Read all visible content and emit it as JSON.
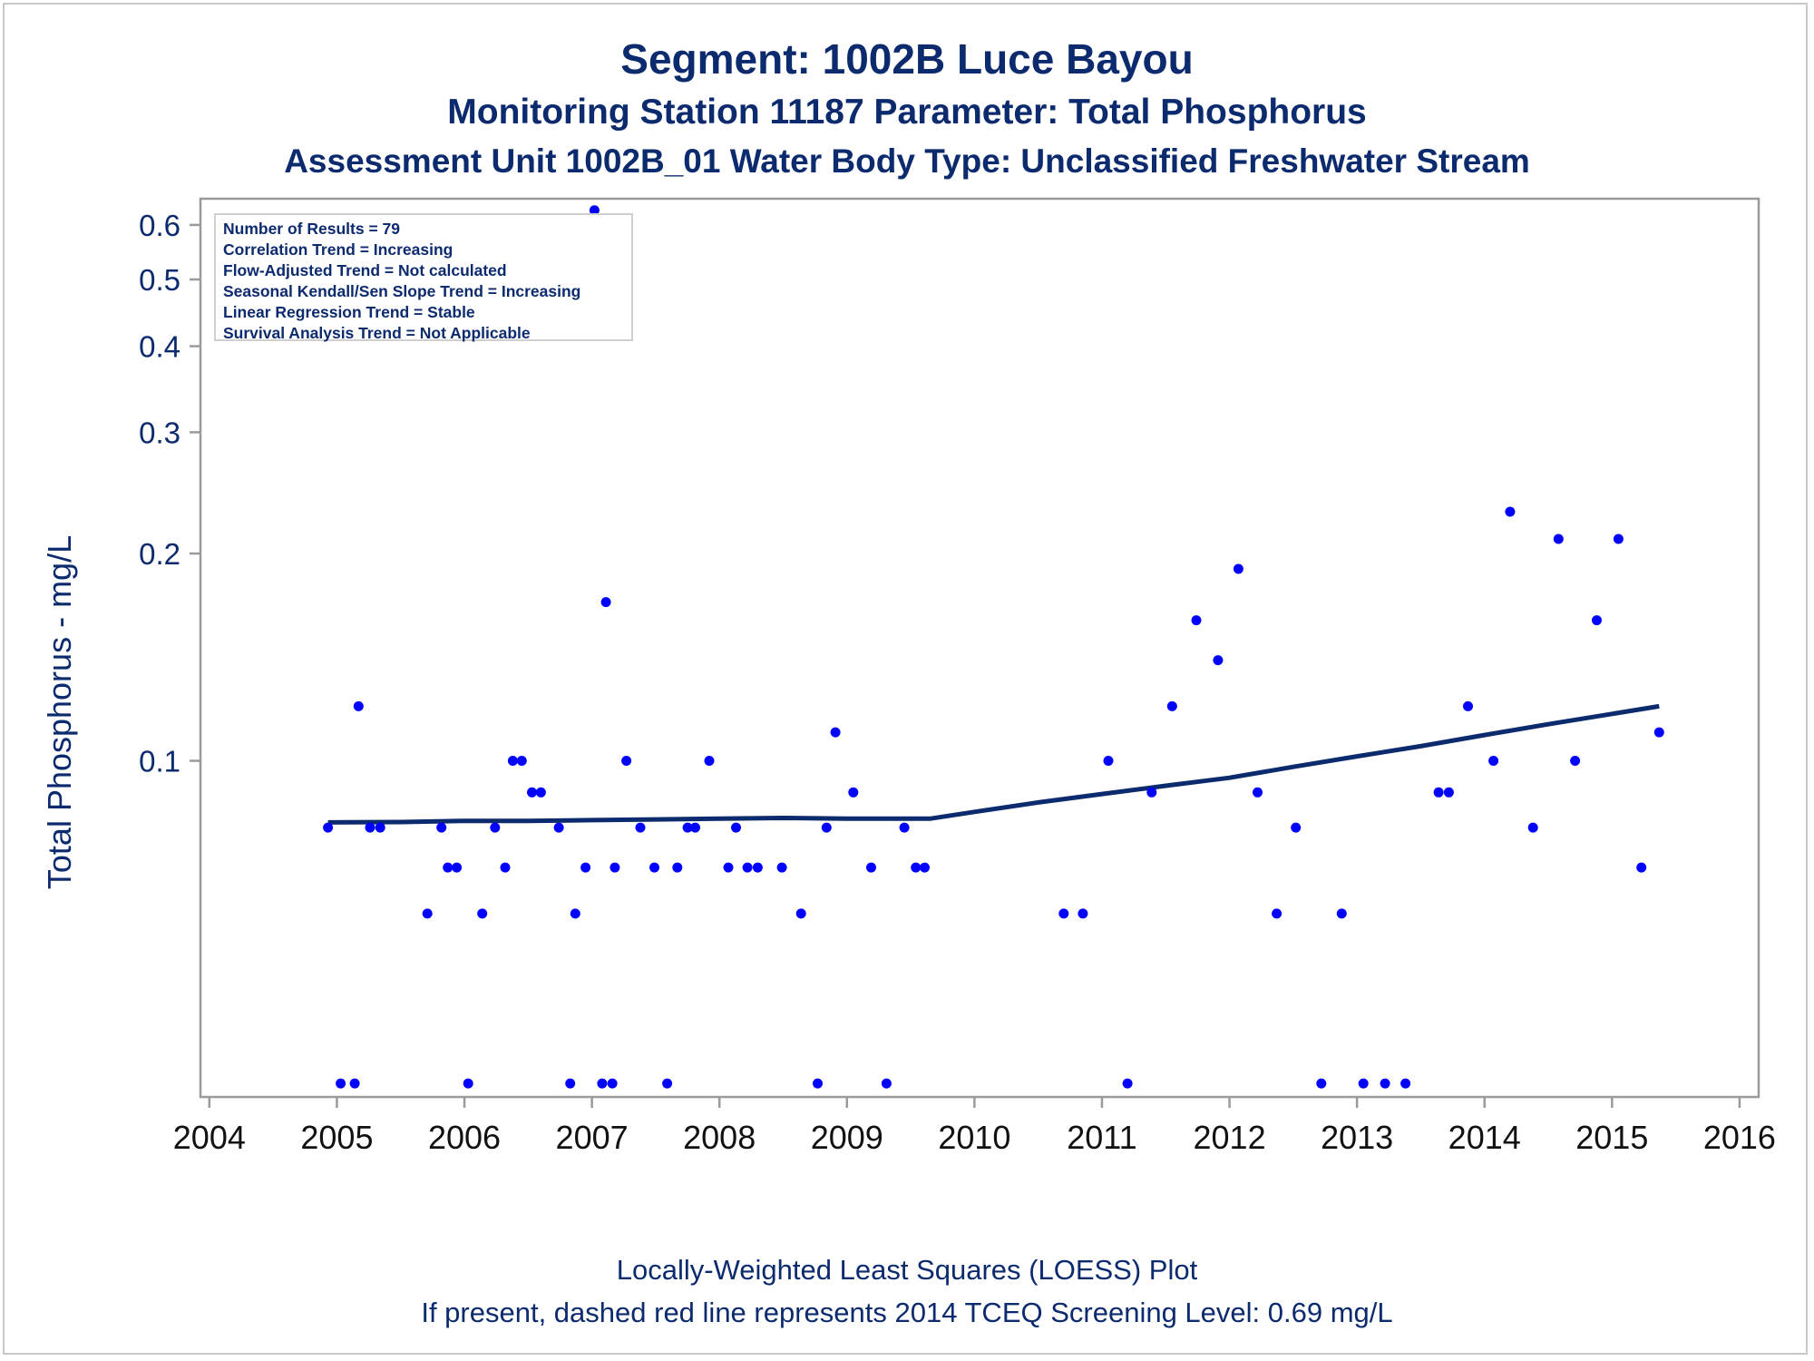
{
  "titles": {
    "line1": "Segment: 1002B  Luce Bayou",
    "line2": "Monitoring Station 11187 Parameter: Total Phosphorus",
    "line3": "Assessment Unit 1002B_01   Water Body Type: Unclassified Freshwater Stream"
  },
  "stats_box": [
    "Number of Results = 79",
    "Correlation Trend = Increasing",
    "Flow-Adjusted Trend = Not calculated",
    "Seasonal Kendall/Sen Slope Trend = Increasing",
    "Linear Regression Trend = Stable",
    "Survival Analysis Trend = Not Applicable"
  ],
  "footer": {
    "line1": "Locally-Weighted Least Squares (LOESS) Plot",
    "line2": "If present, dashed red line represents 2014 TCEQ Screening Level: 0.69 mg/L"
  },
  "colors": {
    "text": "#0c2a6e",
    "points": "#0000ff",
    "loess": "#0c2a6e",
    "axis": "#9a9a9a"
  },
  "chart_data": {
    "type": "scatter",
    "ylabel": "Total Phosphorus - mg/L",
    "xlabel": "",
    "y_scale": "log",
    "xlim": [
      2003.93,
      2016.15
    ],
    "ylim": [
      0.0325,
      0.655
    ],
    "x_ticks": [
      2004,
      2005,
      2006,
      2007,
      2008,
      2009,
      2010,
      2011,
      2012,
      2013,
      2014,
      2015,
      2016
    ],
    "y_ticks": [
      0.1,
      0.2,
      0.3,
      0.4,
      0.5,
      0.6
    ],
    "y_tick_labels": [
      "0.1",
      "0.2",
      "0.3",
      "0.4",
      "0.5",
      "0.6"
    ],
    "grid": false,
    "series": [
      {
        "kind": "points",
        "points": [
          [
            2004.93,
            0.08
          ],
          [
            2005.03,
            0.034
          ],
          [
            2005.14,
            0.034
          ],
          [
            2005.17,
            0.12
          ],
          [
            2005.26,
            0.08
          ],
          [
            2005.34,
            0.08
          ],
          [
            2005.71,
            0.06
          ],
          [
            2005.82,
            0.08
          ],
          [
            2005.87,
            0.07
          ],
          [
            2005.94,
            0.07
          ],
          [
            2006.03,
            0.034
          ],
          [
            2006.14,
            0.06
          ],
          [
            2006.24,
            0.08
          ],
          [
            2006.32,
            0.07
          ],
          [
            2006.38,
            0.1
          ],
          [
            2006.45,
            0.1
          ],
          [
            2006.53,
            0.09
          ],
          [
            2006.6,
            0.09
          ],
          [
            2006.74,
            0.08
          ],
          [
            2006.83,
            0.034
          ],
          [
            2006.87,
            0.06
          ],
          [
            2006.95,
            0.07
          ],
          [
            2007.02,
            0.63
          ],
          [
            2007.08,
            0.034
          ],
          [
            2007.11,
            0.17
          ],
          [
            2007.16,
            0.034
          ],
          [
            2007.18,
            0.07
          ],
          [
            2007.27,
            0.1
          ],
          [
            2007.38,
            0.08
          ],
          [
            2007.49,
            0.07
          ],
          [
            2007.59,
            0.034
          ],
          [
            2007.67,
            0.07
          ],
          [
            2007.75,
            0.08
          ],
          [
            2007.81,
            0.08
          ],
          [
            2007.92,
            0.1
          ],
          [
            2008.07,
            0.07
          ],
          [
            2008.13,
            0.08
          ],
          [
            2008.22,
            0.07
          ],
          [
            2008.3,
            0.07
          ],
          [
            2008.49,
            0.07
          ],
          [
            2008.64,
            0.06
          ],
          [
            2008.77,
            0.034
          ],
          [
            2008.84,
            0.08
          ],
          [
            2008.91,
            0.11
          ],
          [
            2009.05,
            0.09
          ],
          [
            2009.19,
            0.07
          ],
          [
            2009.31,
            0.034
          ],
          [
            2009.45,
            0.08
          ],
          [
            2009.54,
            0.07
          ],
          [
            2009.61,
            0.07
          ],
          [
            2010.7,
            0.06
          ],
          [
            2010.85,
            0.06
          ],
          [
            2011.05,
            0.1
          ],
          [
            2011.2,
            0.034
          ],
          [
            2011.39,
            0.09
          ],
          [
            2011.55,
            0.12
          ],
          [
            2011.74,
            0.16
          ],
          [
            2011.91,
            0.14
          ],
          [
            2012.07,
            0.19
          ],
          [
            2012.22,
            0.09
          ],
          [
            2012.37,
            0.06
          ],
          [
            2012.52,
            0.08
          ],
          [
            2012.72,
            0.034
          ],
          [
            2012.88,
            0.06
          ],
          [
            2013.05,
            0.034
          ],
          [
            2013.22,
            0.034
          ],
          [
            2013.38,
            0.034
          ],
          [
            2013.64,
            0.09
          ],
          [
            2013.72,
            0.09
          ],
          [
            2013.87,
            0.12
          ],
          [
            2014.07,
            0.1
          ],
          [
            2014.2,
            0.23
          ],
          [
            2014.38,
            0.08
          ],
          [
            2014.58,
            0.21
          ],
          [
            2014.71,
            0.1
          ],
          [
            2014.88,
            0.16
          ],
          [
            2015.05,
            0.21
          ],
          [
            2015.23,
            0.07
          ],
          [
            2015.37,
            0.11
          ]
        ]
      },
      {
        "kind": "loess",
        "points": [
          [
            2004.93,
            0.0814
          ],
          [
            2005.5,
            0.0815
          ],
          [
            2006.0,
            0.0818
          ],
          [
            2006.5,
            0.0818
          ],
          [
            2007.0,
            0.082
          ],
          [
            2007.5,
            0.0822
          ],
          [
            2008.0,
            0.0824
          ],
          [
            2008.5,
            0.0826
          ],
          [
            2009.0,
            0.0824
          ],
          [
            2009.5,
            0.0824
          ],
          [
            2009.65,
            0.0824
          ],
          [
            2010.0,
            0.0843
          ],
          [
            2010.5,
            0.087
          ],
          [
            2011.0,
            0.0895
          ],
          [
            2011.5,
            0.092
          ],
          [
            2012.0,
            0.0945
          ],
          [
            2012.5,
            0.098
          ],
          [
            2013.0,
            0.1015
          ],
          [
            2013.5,
            0.105
          ],
          [
            2014.0,
            0.109
          ],
          [
            2014.5,
            0.113
          ],
          [
            2015.0,
            0.117
          ],
          [
            2015.37,
            0.12
          ]
        ]
      }
    ]
  }
}
